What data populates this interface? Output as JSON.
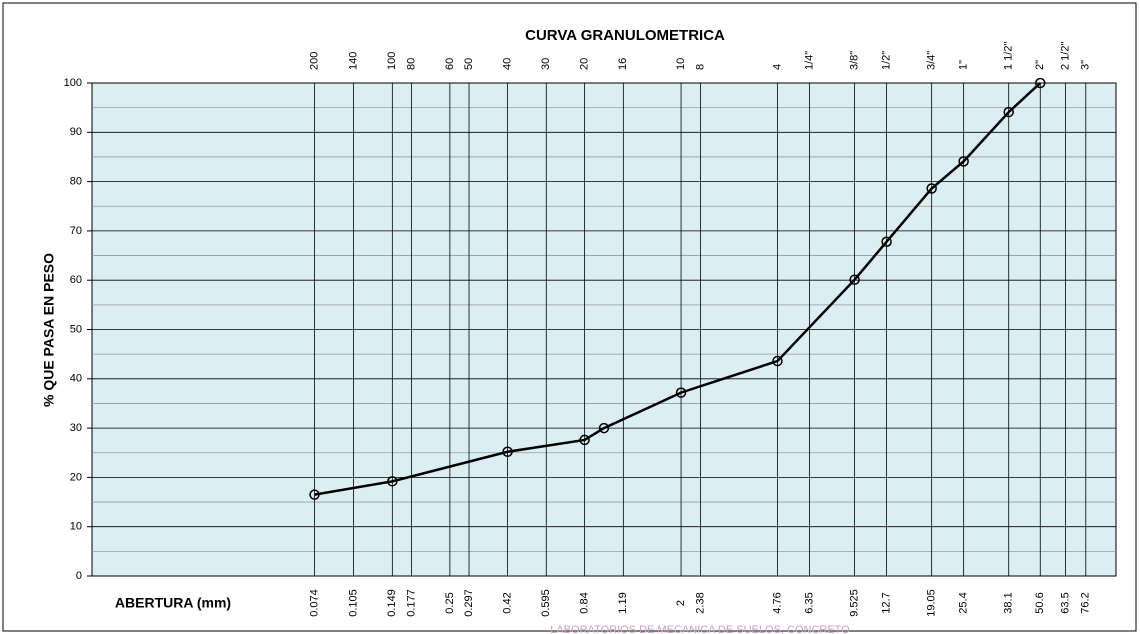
{
  "chart_data": {
    "type": "line",
    "title": "CURVA GRANULOMETRICA",
    "xlabel": "ABERTURA (mm)",
    "ylabel": "% QUE PASA EN PESO",
    "xscale": "log",
    "xlim": [
      0.01,
      100
    ],
    "ylim": [
      0,
      100
    ],
    "xticks": [
      0.074,
      0.105,
      0.149,
      0.177,
      0.25,
      0.297,
      0.42,
      0.595,
      0.84,
      1.19,
      2,
      2.38,
      4.76,
      6.35,
      9.525,
      12.7,
      19.05,
      25.4,
      38.1,
      50.6,
      63.5,
      76.2
    ],
    "top_labels": [
      "200",
      "140",
      "100",
      "80",
      "60",
      "50",
      "40",
      "30",
      "20",
      "16",
      "10",
      "8",
      "4",
      "1/4\"",
      "3/8\"",
      "1/2\"",
      "3/4\"",
      "1\"",
      "1 1/2\"",
      "2\"",
      "2 1/2\"",
      "3\""
    ],
    "yticks": [
      0,
      10,
      20,
      30,
      40,
      50,
      60,
      70,
      80,
      90,
      100
    ],
    "y_minor_grid": [
      5,
      15,
      25,
      35,
      45,
      55,
      65,
      75,
      85,
      95
    ],
    "grid": true,
    "series": [
      {
        "color": "#000000",
        "x": [
          0.074,
          0.149,
          0.42,
          0.84,
          1.0,
          2,
          4.76,
          9.525,
          12.7,
          19.05,
          25.4,
          38.1,
          50.6
        ],
        "values": [
          16.5,
          19.2,
          25.2,
          27.6,
          30.0,
          37.2,
          43.6,
          60.1,
          67.8,
          78.6,
          84.1,
          94.1,
          100
        ]
      }
    ],
    "watermark": "LABORATORIOS DE MECANICA DE SUELOS, CONCRETO"
  }
}
